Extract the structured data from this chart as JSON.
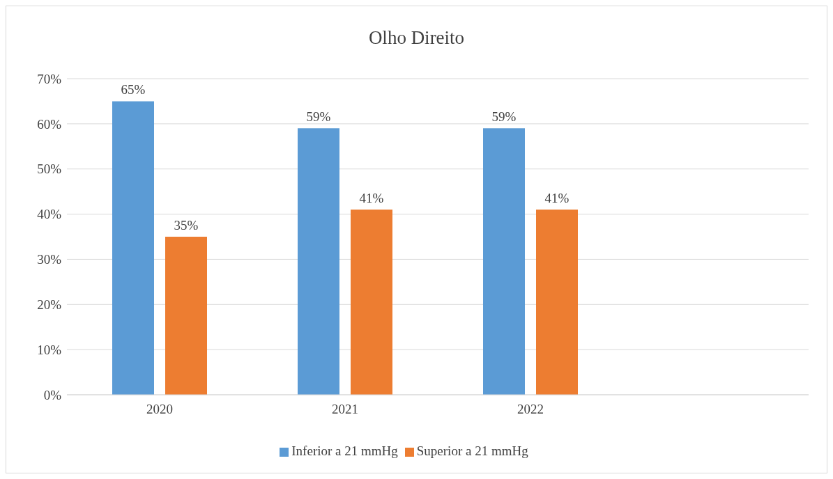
{
  "chart_data": {
    "type": "bar",
    "title": "Olho Direito",
    "categories": [
      "2020",
      "2021",
      "2022",
      null
    ],
    "series": [
      {
        "name": "Inferior a 21 mmHg",
        "color": "#5b9bd5",
        "values": [
          65,
          59,
          59,
          null
        ],
        "value_labels": [
          "65%",
          "59%",
          "59%",
          null
        ]
      },
      {
        "name": "Superior a 21 mmHg",
        "color": "#ed7d31",
        "values": [
          35,
          41,
          41,
          null
        ],
        "value_labels": [
          "35%",
          "41%",
          "41%",
          null
        ]
      }
    ],
    "ylim": [
      0,
      70
    ],
    "yticks": [
      {
        "value": 0,
        "label": "0%"
      },
      {
        "value": 10,
        "label": "10%"
      },
      {
        "value": 20,
        "label": "20%"
      },
      {
        "value": 30,
        "label": "30%"
      },
      {
        "value": 40,
        "label": "40%"
      },
      {
        "value": 50,
        "label": "50%"
      },
      {
        "value": 60,
        "label": "60%"
      },
      {
        "value": 70,
        "label": "70%"
      }
    ],
    "grid": "y",
    "legend": "bottom"
  }
}
